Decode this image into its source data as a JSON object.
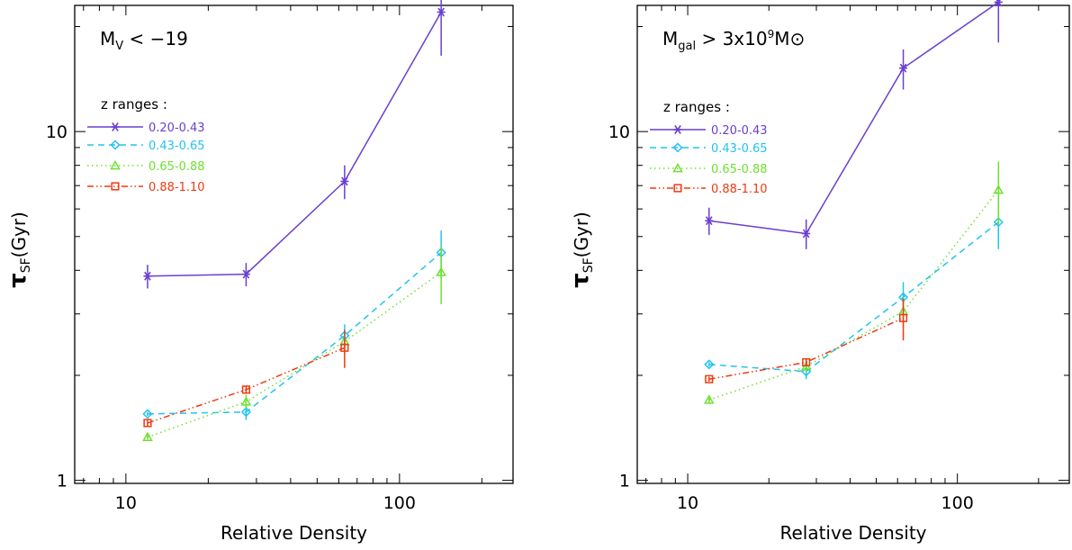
{
  "colors": {
    "0.20-0.43": "#6a3fcf",
    "0.43-0.65": "#22c3f0",
    "0.65-0.88": "#6fe030",
    "0.88-1.10": "#ee3a12"
  },
  "chart_data": [
    {
      "type": "line",
      "panel_label": {
        "main": "M",
        "sub": "V",
        "rest": " < −19"
      },
      "xlabel": "Relative Density",
      "ylabel": {
        "main": "τ",
        "sub": "SF",
        "rest": "(Gyr)"
      },
      "xscale": "log",
      "yscale": "log",
      "xlim": [
        6.5,
        260
      ],
      "ylim": [
        0.98,
        23
      ],
      "xticks": [
        {
          "v": 10,
          "label": "10"
        },
        {
          "v": 100,
          "label": "100"
        }
      ],
      "yticks": [
        {
          "v": 1,
          "label": "1"
        },
        {
          "v": 10,
          "label": "10"
        }
      ],
      "legend": {
        "title": "z ranges :",
        "position": "upper-left"
      },
      "series": [
        {
          "name": "0.20-0.43",
          "style": "solid",
          "marker": "asterisk",
          "x": [
            12,
            27.5,
            63,
            142
          ],
          "y": [
            3.85,
            3.9,
            7.2,
            22
          ],
          "err": [
            0.3,
            0.3,
            0.8,
            5.5
          ]
        },
        {
          "name": "0.43-0.65",
          "style": "dashed",
          "marker": "diamond",
          "x": [
            12,
            27.5,
            63,
            142
          ],
          "y": [
            1.55,
            1.57,
            2.6,
            4.5
          ],
          "err": [
            0.02,
            0.08,
            0.2,
            0.7
          ]
        },
        {
          "name": "0.65-0.88",
          "style": "dotted",
          "marker": "triangle",
          "x": [
            12,
            27.5,
            63,
            142
          ],
          "y": [
            1.33,
            1.68,
            2.5,
            3.95
          ],
          "err": [
            0.02,
            0.08,
            0.2,
            0.75
          ]
        },
        {
          "name": "0.88-1.10",
          "style": "dashdot",
          "marker": "square",
          "x": [
            12,
            27.5,
            63
          ],
          "y": [
            1.46,
            1.82,
            2.4
          ],
          "err": [
            0.03,
            0.05,
            0.3
          ]
        }
      ]
    },
    {
      "type": "line",
      "panel_label": {
        "main": "M",
        "sub": "gal",
        "rest": " > 3x10",
        "sup": "9",
        "tail": "M⊙"
      },
      "xlabel": "Relative Density",
      "ylabel": {
        "main": "τ",
        "sub": "SF",
        "rest": "(Gyr)"
      },
      "xscale": "log",
      "yscale": "log",
      "xlim": [
        6.5,
        260
      ],
      "ylim": [
        0.98,
        23
      ],
      "xticks": [
        {
          "v": 10,
          "label": "10"
        },
        {
          "v": 100,
          "label": "100"
        }
      ],
      "yticks": [
        {
          "v": 1,
          "label": "1"
        },
        {
          "v": 10,
          "label": "10"
        }
      ],
      "legend": {
        "title": "z ranges :",
        "position": "upper-left"
      },
      "series": [
        {
          "name": "0.20-0.43",
          "style": "solid",
          "marker": "asterisk",
          "x": [
            12,
            27.5,
            63,
            142
          ],
          "y": [
            5.55,
            5.1,
            15.2,
            23.5
          ],
          "err": [
            0.5,
            0.5,
            2.0,
            5.5
          ]
        },
        {
          "name": "0.43-0.65",
          "style": "dashed",
          "marker": "diamond",
          "x": [
            12,
            27.5,
            63,
            142
          ],
          "y": [
            2.15,
            2.05,
            3.35,
            5.5
          ],
          "err": [
            0.03,
            0.1,
            0.35,
            0.9
          ]
        },
        {
          "name": "0.65-0.88",
          "style": "dotted",
          "marker": "triangle",
          "x": [
            12,
            27.5,
            63,
            142
          ],
          "y": [
            1.7,
            2.12,
            3.05,
            6.8
          ],
          "err": [
            0.03,
            0.08,
            0.3,
            1.4
          ]
        },
        {
          "name": "0.88-1.10",
          "style": "dashdot",
          "marker": "square",
          "x": [
            12,
            27.5,
            63
          ],
          "y": [
            1.95,
            2.18,
            2.92
          ],
          "err": [
            0.03,
            0.05,
            0.4
          ]
        }
      ]
    }
  ]
}
